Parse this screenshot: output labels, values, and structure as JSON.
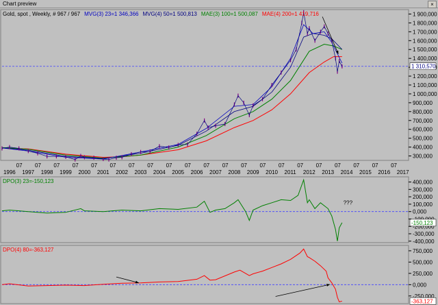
{
  "window": {
    "title": "Chart preview",
    "close_glyph": "×"
  },
  "colors": {
    "price": "#000080",
    "mvg23": "#0000c0",
    "mvg50": "#000080",
    "mae100": "#008000",
    "mae200": "#ff0000",
    "dpo3": "#008000",
    "dpo4": "#ff0000",
    "bg": "#c0c0c0"
  },
  "chart_data": [
    {
      "type": "line",
      "legend": [
        {
          "text": "Gold, spot , Weekly, # 967 / 967",
          "color": "#000000"
        },
        {
          "text": "MVG(3) 23=1 346,366",
          "color": "#0000c0"
        },
        {
          "text": "MVG(4) 50=1 500,813",
          "color": "#000080"
        },
        {
          "text": "MAE(3) 100=1 500,087",
          "color": "#008000"
        },
        {
          "text": "MAE(4) 200=1 419,716",
          "color": "#ff0000"
        }
      ],
      "ylim": [
        250000,
        1950000
      ],
      "y_ticks": [
        "1 900,000",
        "1 800,000",
        "1 700,000",
        "1 600,000",
        "1 500,000",
        "1 400,000",
        "1 300,000",
        "1 200,000",
        "1 100,000",
        "1 000,000",
        "900,000",
        "800,000",
        "700,000",
        "600,000",
        "500,000",
        "400,000",
        "300,000"
      ],
      "y_tick_values": [
        1900000,
        1800000,
        1700000,
        1600000,
        1500000,
        1400000,
        1300000,
        1200000,
        1100000,
        1000000,
        900000,
        800000,
        700000,
        600000,
        500000,
        400000,
        300000
      ],
      "last_value_label": "1 310,570",
      "last_value": 1310570,
      "x_month_label": "07",
      "x_years": [
        "1996",
        "1997",
        "1998",
        "1999",
        "2000",
        "2001",
        "2002",
        "2003",
        "2004",
        "2005",
        "2006",
        "2007",
        "2008",
        "2009",
        "2010",
        "2011",
        "2012",
        "2013",
        "2014",
        "2015",
        "2016",
        "2017"
      ],
      "xlim": [
        1995.6,
        2017.3
      ],
      "price": {
        "x": [
          1995.6,
          1996.0,
          1996.5,
          1997.0,
          1997.5,
          1998.0,
          1998.5,
          1999.0,
          1999.5,
          1999.8,
          2000.0,
          2000.5,
          2001.0,
          2001.3,
          2001.7,
          2002.0,
          2002.5,
          2003.0,
          2003.5,
          2004.0,
          2004.5,
          2005.0,
          2005.5,
          2006.0,
          2006.4,
          2006.6,
          2007.0,
          2007.5,
          2008.0,
          2008.2,
          2008.5,
          2008.8,
          2009.0,
          2009.5,
          2010.0,
          2010.5,
          2011.0,
          2011.3,
          2011.6,
          2011.7,
          2011.9,
          2012.0,
          2012.3,
          2012.6,
          2012.8,
          2013.0,
          2013.2,
          2013.4,
          2013.5,
          2013.6,
          2013.75
        ],
        "y": [
          385000,
          400000,
          385000,
          355000,
          330000,
          295000,
          295000,
          290000,
          260000,
          300000,
          285000,
          280000,
          265000,
          260000,
          280000,
          285000,
          320000,
          345000,
          350000,
          410000,
          395000,
          425000,
          430000,
          550000,
          700000,
          620000,
          640000,
          660000,
          880000,
          980000,
          900000,
          760000,
          870000,
          940000,
          1100000,
          1240000,
          1380000,
          1500000,
          1800000,
          1920000,
          1680000,
          1740000,
          1600000,
          1700000,
          1760000,
          1680000,
          1600000,
          1400000,
          1250000,
          1370000,
          1310000
        ]
      },
      "series_mvg23": {
        "x": [
          1995.6,
          1997.0,
          1999.0,
          2001.0,
          2003.0,
          2005.0,
          2006.5,
          2008.0,
          2009.0,
          2010.0,
          2011.0,
          2011.7,
          2012.2,
          2012.8,
          2013.2,
          2013.75
        ],
        "y": [
          390000,
          355000,
          285000,
          265000,
          345000,
          430000,
          610000,
          860000,
          880000,
          1080000,
          1400000,
          1780000,
          1680000,
          1700000,
          1580000,
          1346366
        ]
      },
      "series_mvg50": {
        "x": [
          1995.6,
          1997.0,
          1999.0,
          2001.0,
          2003.0,
          2005.0,
          2006.5,
          2008.0,
          2009.0,
          2010.0,
          2011.0,
          2011.7,
          2012.2,
          2012.8,
          2013.2,
          2013.75
        ],
        "y": [
          390000,
          365000,
          295000,
          270000,
          330000,
          420000,
          580000,
          800000,
          860000,
          1020000,
          1300000,
          1640000,
          1680000,
          1660000,
          1620000,
          1500813
        ]
      },
      "series_mae100": {
        "x": [
          1995.6,
          1997.0,
          1999.0,
          2001.0,
          2003.0,
          2005.0,
          2006.5,
          2008.0,
          2009.0,
          2010.0,
          2011.0,
          2012.0,
          2012.8,
          2013.3,
          2013.75
        ],
        "y": [
          395000,
          375000,
          310000,
          275000,
          310000,
          400000,
          530000,
          720000,
          800000,
          940000,
          1150000,
          1480000,
          1560000,
          1540000,
          1500087
        ]
      },
      "series_mae200": {
        "x": [
          1995.6,
          1997.0,
          1999.0,
          2001.0,
          2002.0,
          2003.0,
          2005.0,
          2006.5,
          2008.0,
          2009.0,
          2010.0,
          2011.0,
          2012.0,
          2012.8,
          2013.3,
          2013.75
        ],
        "y": [
          390000,
          380000,
          320000,
          285000,
          290000,
          310000,
          370000,
          470000,
          620000,
          700000,
          820000,
          1000000,
          1240000,
          1360000,
          1420000,
          1419716
        ]
      },
      "annotations": [
        {
          "type": "arrow",
          "from": [
            2012.7,
            1870000
          ],
          "to": [
            2013.55,
            1450000
          ]
        }
      ]
    },
    {
      "type": "line",
      "title": "DPO(3) 23=-150,123",
      "ylim": [
        -420000,
        470000
      ],
      "y_ticks": [
        "400,000",
        "300,000",
        "200,000",
        "100,000",
        "0,000",
        "-100,000",
        "-200,000",
        "-300,000",
        "-400,000"
      ],
      "y_tick_values": [
        400000,
        300000,
        200000,
        100000,
        0,
        -100000,
        -200000,
        -300000,
        -400000
      ],
      "last_value_label": "-150,123",
      "last_value": -150123,
      "annotation_text": "???",
      "series": {
        "x": [
          1995.6,
          1996.0,
          1997.0,
          1998.0,
          1999.0,
          1999.8,
          2000.0,
          2001.0,
          2002.0,
          2003.0,
          2004.0,
          2005.0,
          2006.0,
          2006.4,
          2006.7,
          2007.0,
          2007.5,
          2008.0,
          2008.2,
          2008.6,
          2008.8,
          2009.0,
          2009.5,
          2010.0,
          2010.5,
          2011.0,
          2011.4,
          2011.7,
          2011.9,
          2012.0,
          2012.3,
          2012.6,
          2012.8,
          2013.0,
          2013.2,
          2013.4,
          2013.5,
          2013.6,
          2013.75
        ],
        "y": [
          10000,
          20000,
          0,
          -20000,
          -10000,
          40000,
          10000,
          0,
          20000,
          10000,
          40000,
          30000,
          60000,
          140000,
          -10000,
          20000,
          40000,
          120000,
          160000,
          0,
          -120000,
          20000,
          80000,
          120000,
          160000,
          150000,
          220000,
          430000,
          120000,
          160000,
          40000,
          120000,
          80000,
          40000,
          -60000,
          -240000,
          -400000,
          -220000,
          -150123
        ]
      }
    },
    {
      "type": "line",
      "title": "DPO(4) 80=-363,127",
      "ylim": [
        -420000,
        870000
      ],
      "y_ticks": [
        "750,000",
        "500,000",
        "250,000",
        "0,000",
        "-250,000"
      ],
      "y_tick_values": [
        750000,
        500000,
        250000,
        0,
        -250000
      ],
      "last_value_label": "-363,127",
      "last_value": -363127,
      "series": {
        "x": [
          1995.6,
          1996.0,
          1997.0,
          1998.0,
          1999.0,
          2000.0,
          2001.0,
          2002.0,
          2003.0,
          2004.0,
          2005.0,
          2006.0,
          2006.4,
          2006.7,
          2007.0,
          2008.0,
          2008.3,
          2008.8,
          2009.0,
          2009.5,
          2010.0,
          2010.5,
          2011.0,
          2011.5,
          2011.7,
          2011.9,
          2012.0,
          2012.3,
          2012.6,
          2012.9,
          2013.0,
          2013.2,
          2013.4,
          2013.5,
          2013.6,
          2013.75
        ],
        "y": [
          0,
          20000,
          -30000,
          -20000,
          -10000,
          -20000,
          10000,
          30000,
          40000,
          60000,
          70000,
          120000,
          200000,
          100000,
          110000,
          280000,
          320000,
          200000,
          240000,
          300000,
          380000,
          460000,
          560000,
          700000,
          790000,
          620000,
          600000,
          520000,
          420000,
          300000,
          150000,
          40000,
          -100000,
          -280000,
          -380000,
          -363127
        ]
      },
      "annotations": [
        {
          "type": "arrow",
          "from": [
            2001.7,
            170000
          ],
          "to": [
            2002.9,
            40000
          ]
        },
        {
          "type": "arrow",
          "from": [
            2010.2,
            -260000
          ],
          "to": [
            2013.1,
            5000
          ]
        }
      ]
    }
  ]
}
